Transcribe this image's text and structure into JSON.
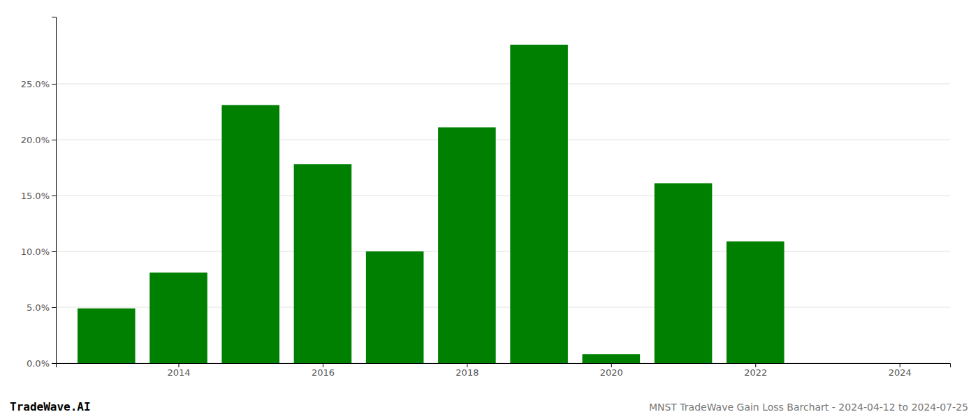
{
  "chart_data": {
    "type": "bar",
    "x": [
      2013,
      2014,
      2015,
      2016,
      2017,
      2018,
      2019,
      2020,
      2021,
      2022,
      2023
    ],
    "values": [
      0.049,
      0.081,
      0.231,
      0.178,
      0.1,
      0.211,
      0.285,
      0.008,
      0.161,
      0.109,
      0.0
    ],
    "color": "#008000",
    "xlim": [
      2012.3,
      2024.7
    ],
    "xticks": [
      2014,
      2016,
      2018,
      2020,
      2022,
      2024
    ],
    "ylim": [
      0,
      0.31
    ],
    "yticks": [
      {
        "value": 0.0,
        "label": "0.0%"
      },
      {
        "value": 0.05,
        "label": "5.0%"
      },
      {
        "value": 0.1,
        "label": "10.0%"
      },
      {
        "value": 0.15,
        "label": "15.0%"
      },
      {
        "value": 0.2,
        "label": "20.0%"
      },
      {
        "value": 0.25,
        "label": "25.0%"
      }
    ],
    "grid": true,
    "annotations": [
      "TradeWave.AI",
      "MNST TradeWave Gain Loss Barchart - 2024-04-12 to 2024-07-25"
    ]
  }
}
